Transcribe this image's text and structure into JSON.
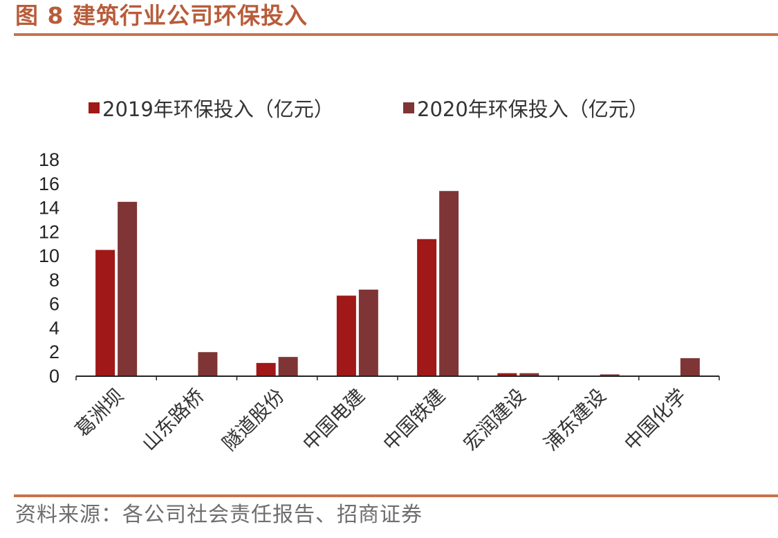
{
  "header": {
    "title": "图 8  建筑行业公司环保投入"
  },
  "footer": {
    "source": "资料来源：各公司社会责任报告、招商证券"
  },
  "colors": {
    "series1": "#a01818",
    "series2": "#7f3535",
    "accent": "#c8734b",
    "title": "#b85c3a"
  },
  "chart_data": {
    "type": "bar",
    "categories": [
      "葛洲坝",
      "山东路桥",
      "隧道股份",
      "中国电建",
      "中国铁建",
      "宏润建设",
      "浦东建设",
      "中国化学"
    ],
    "series": [
      {
        "name": "2019年环保投入（亿元）",
        "values": [
          10.5,
          0,
          1.1,
          6.7,
          11.4,
          0.25,
          0,
          0
        ]
      },
      {
        "name": "2020年环保投入（亿元）",
        "values": [
          14.5,
          2.0,
          1.6,
          7.2,
          15.4,
          0.25,
          0.15,
          1.5
        ]
      }
    ],
    "yticks": [
      0,
      2,
      4,
      6,
      8,
      10,
      12,
      14,
      16,
      18
    ],
    "ylim": [
      0,
      18
    ],
    "grid": false,
    "legend": "top"
  }
}
